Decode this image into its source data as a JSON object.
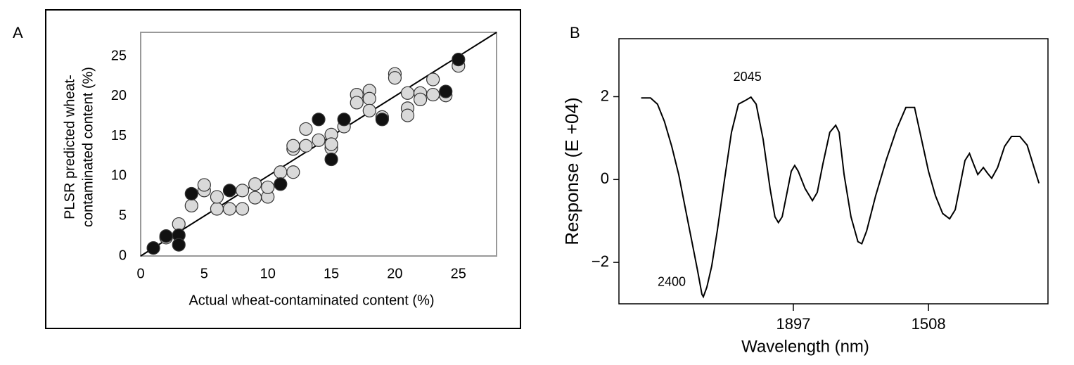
{
  "chart_data": [
    {
      "type": "scatter",
      "panel": "A",
      "xlabel": "Actual wheat-contaminated content (%)",
      "ylabel": [
        "PLSR predicted wheat-",
        "contaminated content (%)"
      ],
      "xlim": [
        0,
        28
      ],
      "ylim": [
        0,
        28
      ],
      "xticks": [
        0,
        5,
        10,
        15,
        20,
        25
      ],
      "yticks": [
        0,
        5,
        10,
        15,
        20,
        25
      ],
      "fit_line": {
        "x": [
          0,
          28
        ],
        "values": [
          0,
          28
        ],
        "color": "#000000"
      },
      "series": [
        {
          "color": "#d9d9d9",
          "x": [
            2,
            3,
            4,
            5,
            5,
            6,
            6,
            7,
            8,
            8,
            9,
            9,
            10,
            10,
            11,
            12,
            12,
            12,
            13,
            13,
            14,
            15,
            15,
            15,
            16,
            17,
            17,
            18,
            18,
            18,
            19,
            20,
            20,
            21,
            21,
            21,
            22,
            22,
            23,
            23,
            24,
            25
          ],
          "values": [
            2.3,
            4.0,
            6.3,
            8.2,
            8.9,
            5.9,
            7.4,
            5.9,
            5.9,
            8.2,
            7.3,
            9.0,
            7.4,
            8.6,
            10.5,
            10.5,
            13.4,
            13.8,
            15.9,
            13.8,
            14.5,
            15.2,
            13.5,
            14.0,
            16.2,
            20.2,
            19.2,
            20.7,
            19.7,
            18.2,
            17.4,
            22.8,
            22.3,
            20.4,
            18.5,
            17.6,
            20.4,
            19.6,
            22.1,
            20.2,
            20.1,
            23.8
          ]
        },
        {
          "color": "#111111",
          "x": [
            1,
            2,
            3,
            3,
            4,
            7,
            11,
            14,
            15,
            16,
            19,
            24,
            25
          ],
          "values": [
            1.0,
            2.5,
            2.6,
            1.4,
            7.8,
            8.2,
            9.0,
            17.1,
            12.1,
            17.1,
            17.1,
            20.6,
            24.6
          ]
        }
      ]
    },
    {
      "type": "line",
      "panel": "B",
      "xlabel": "Wavelength (nm)",
      "ylabel": "Response (E +04)",
      "xlim": [
        2399,
        1164
      ],
      "ylim": [
        -3,
        3.4
      ],
      "xticks": [
        1897,
        1508
      ],
      "yticks": [
        {
          "value": -2,
          "label": "−2"
        },
        0,
        2
      ],
      "annotations": [
        "2400",
        "2045"
      ],
      "series": [
        {
          "color": "#000000",
          "x": [
            2335,
            2308,
            2288,
            2268,
            2247,
            2227,
            2207,
            2187,
            2173,
            2160,
            2156,
            2146,
            2132,
            2116,
            2096,
            2075,
            2055,
            2035,
            2019,
            2004,
            1984,
            1964,
            1950,
            1940,
            1929,
            1917,
            1903,
            1893,
            1883,
            1863,
            1842,
            1828,
            1812,
            1792,
            1775,
            1765,
            1751,
            1731,
            1711,
            1700,
            1686,
            1660,
            1630,
            1599,
            1573,
            1559,
            1548,
            1528,
            1508,
            1488,
            1467,
            1447,
            1431,
            1417,
            1403,
            1390,
            1378,
            1366,
            1350,
            1338,
            1326,
            1309,
            1289,
            1269,
            1245,
            1224,
            1204,
            1190
          ],
          "values": [
            1.97,
            1.97,
            1.82,
            1.4,
            0.8,
            0.12,
            -0.73,
            -1.58,
            -2.18,
            -2.77,
            -2.83,
            -2.6,
            -2.09,
            -1.24,
            -0.05,
            1.14,
            1.82,
            1.91,
            1.99,
            1.82,
            0.97,
            -0.22,
            -0.9,
            -1.04,
            -0.9,
            -0.39,
            0.2,
            0.34,
            0.2,
            -0.22,
            -0.51,
            -0.31,
            0.37,
            1.14,
            1.31,
            1.14,
            0.12,
            -0.9,
            -1.5,
            -1.55,
            -1.24,
            -0.39,
            0.46,
            1.23,
            1.74,
            1.74,
            1.74,
            0.97,
            0.2,
            -0.39,
            -0.82,
            -0.95,
            -0.73,
            -0.14,
            0.46,
            0.63,
            0.37,
            0.12,
            0.29,
            0.15,
            0.03,
            0.29,
            0.8,
            1.04,
            1.04,
            0.83,
            0.29,
            -0.09
          ]
        }
      ]
    }
  ]
}
